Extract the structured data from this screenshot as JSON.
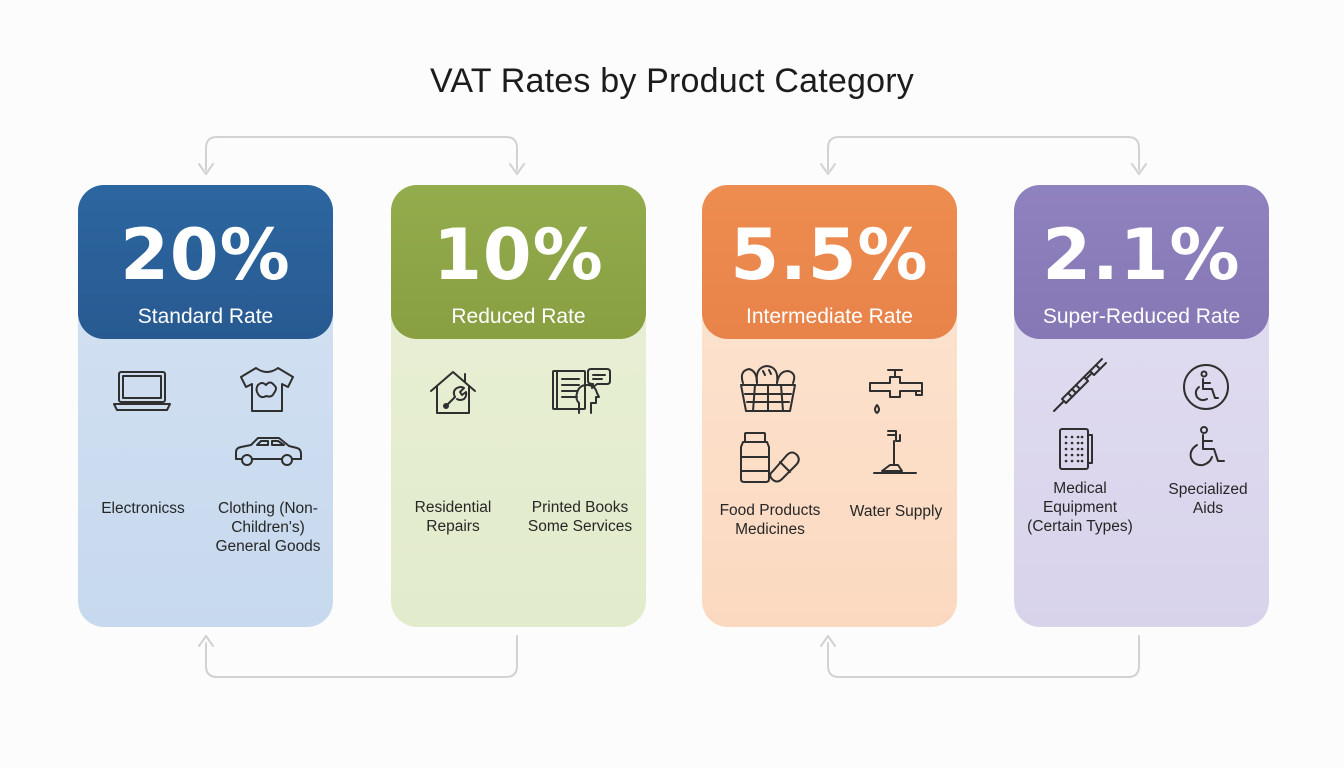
{
  "title": "VAT Rates by Product Category",
  "colors": {
    "standard": "#2b6198",
    "reduced": "#8fa948",
    "intermediate": "#ec8a4e",
    "super_reduced": "#8c7ebb",
    "connector": "#d4d4d4"
  },
  "cards": [
    {
      "rate": "20%",
      "name": "Standard Rate",
      "icons": [
        "laptop-icon",
        "t-shirt-icon",
        "car-icon"
      ],
      "labels": [
        "Electronicss",
        "Clothing (Non-\nChildren's)\nGeneral Goods"
      ]
    },
    {
      "rate": "10%",
      "name": "Reduced Rate",
      "icons": [
        "house-wrench-icon",
        "book-speech-icon"
      ],
      "labels": [
        "Residential\nRepairs",
        "Printed Books\nSome Services"
      ]
    },
    {
      "rate": "5.5%",
      "name": "Intermediate Rate",
      "icons": [
        "bread-basket-icon",
        "water-tap-icon",
        "medicine-bottle-icon",
        "water-faucet-icon"
      ],
      "labels": [
        "Food Products\nMedicines",
        "Water Supply"
      ]
    },
    {
      "rate": "2.1%",
      "name": "Super-Reduced Rate",
      "icons": [
        "syringe-icon",
        "accessibility-icon",
        "medical-device-icon",
        "wheelchair-icon"
      ],
      "labels": [
        "Medical\nEquipment\n(Certain Types)",
        "Specialized\nAids"
      ]
    }
  ]
}
